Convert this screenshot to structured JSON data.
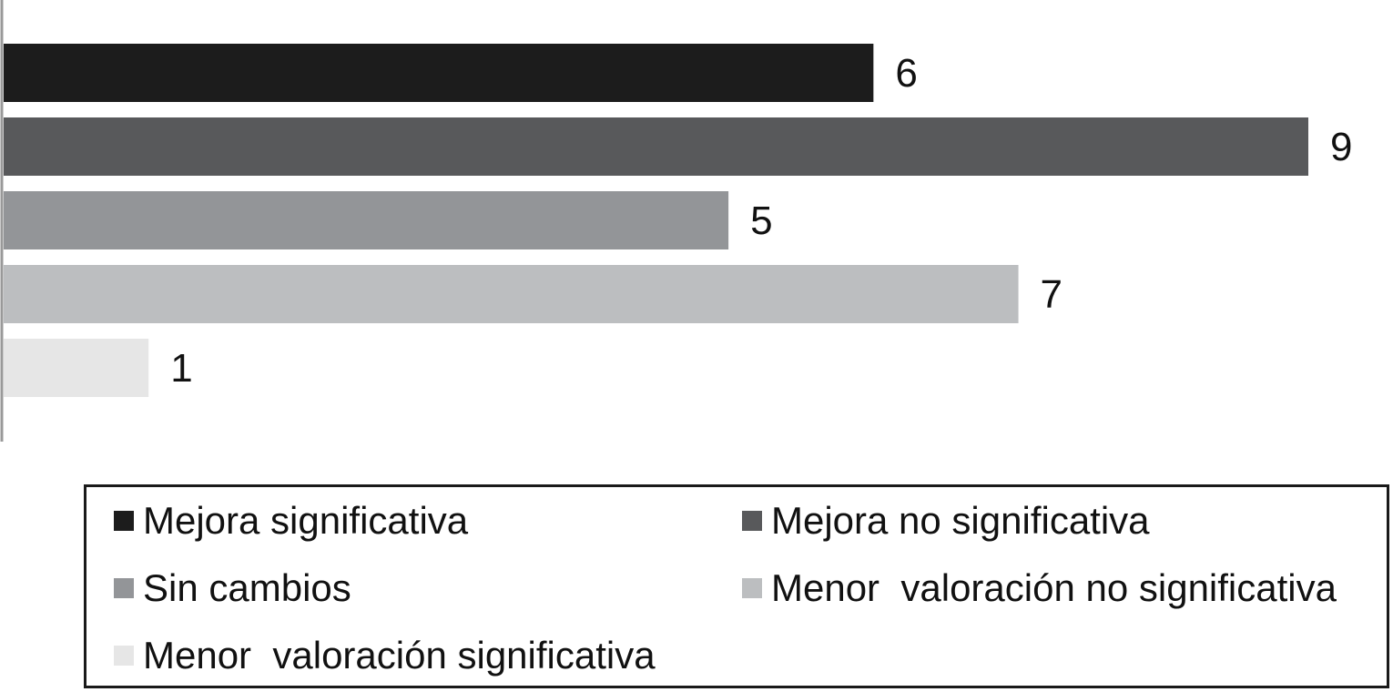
{
  "chart_data": {
    "type": "bar",
    "orientation": "horizontal",
    "title": "",
    "xlabel": "",
    "ylabel": "",
    "xlim": [
      0,
      9
    ],
    "grid": false,
    "legend_position": "bottom",
    "series": [
      {
        "name": "Mejora significativa",
        "value": 6,
        "label": "6",
        "color": "#1c1c1c"
      },
      {
        "name": "Mejora no significativa",
        "value": 9,
        "label": "9",
        "color": "#58595b"
      },
      {
        "name": "Sin cambios",
        "value": 5,
        "label": "5",
        "color": "#939598"
      },
      {
        "name": "Menor  valoración no significativa",
        "value": 7,
        "label": "7",
        "color": "#bcbec0"
      },
      {
        "name": "Menor  valoración significativa",
        "value": 1,
        "label": "1",
        "color": "#e6e6e6"
      }
    ]
  }
}
